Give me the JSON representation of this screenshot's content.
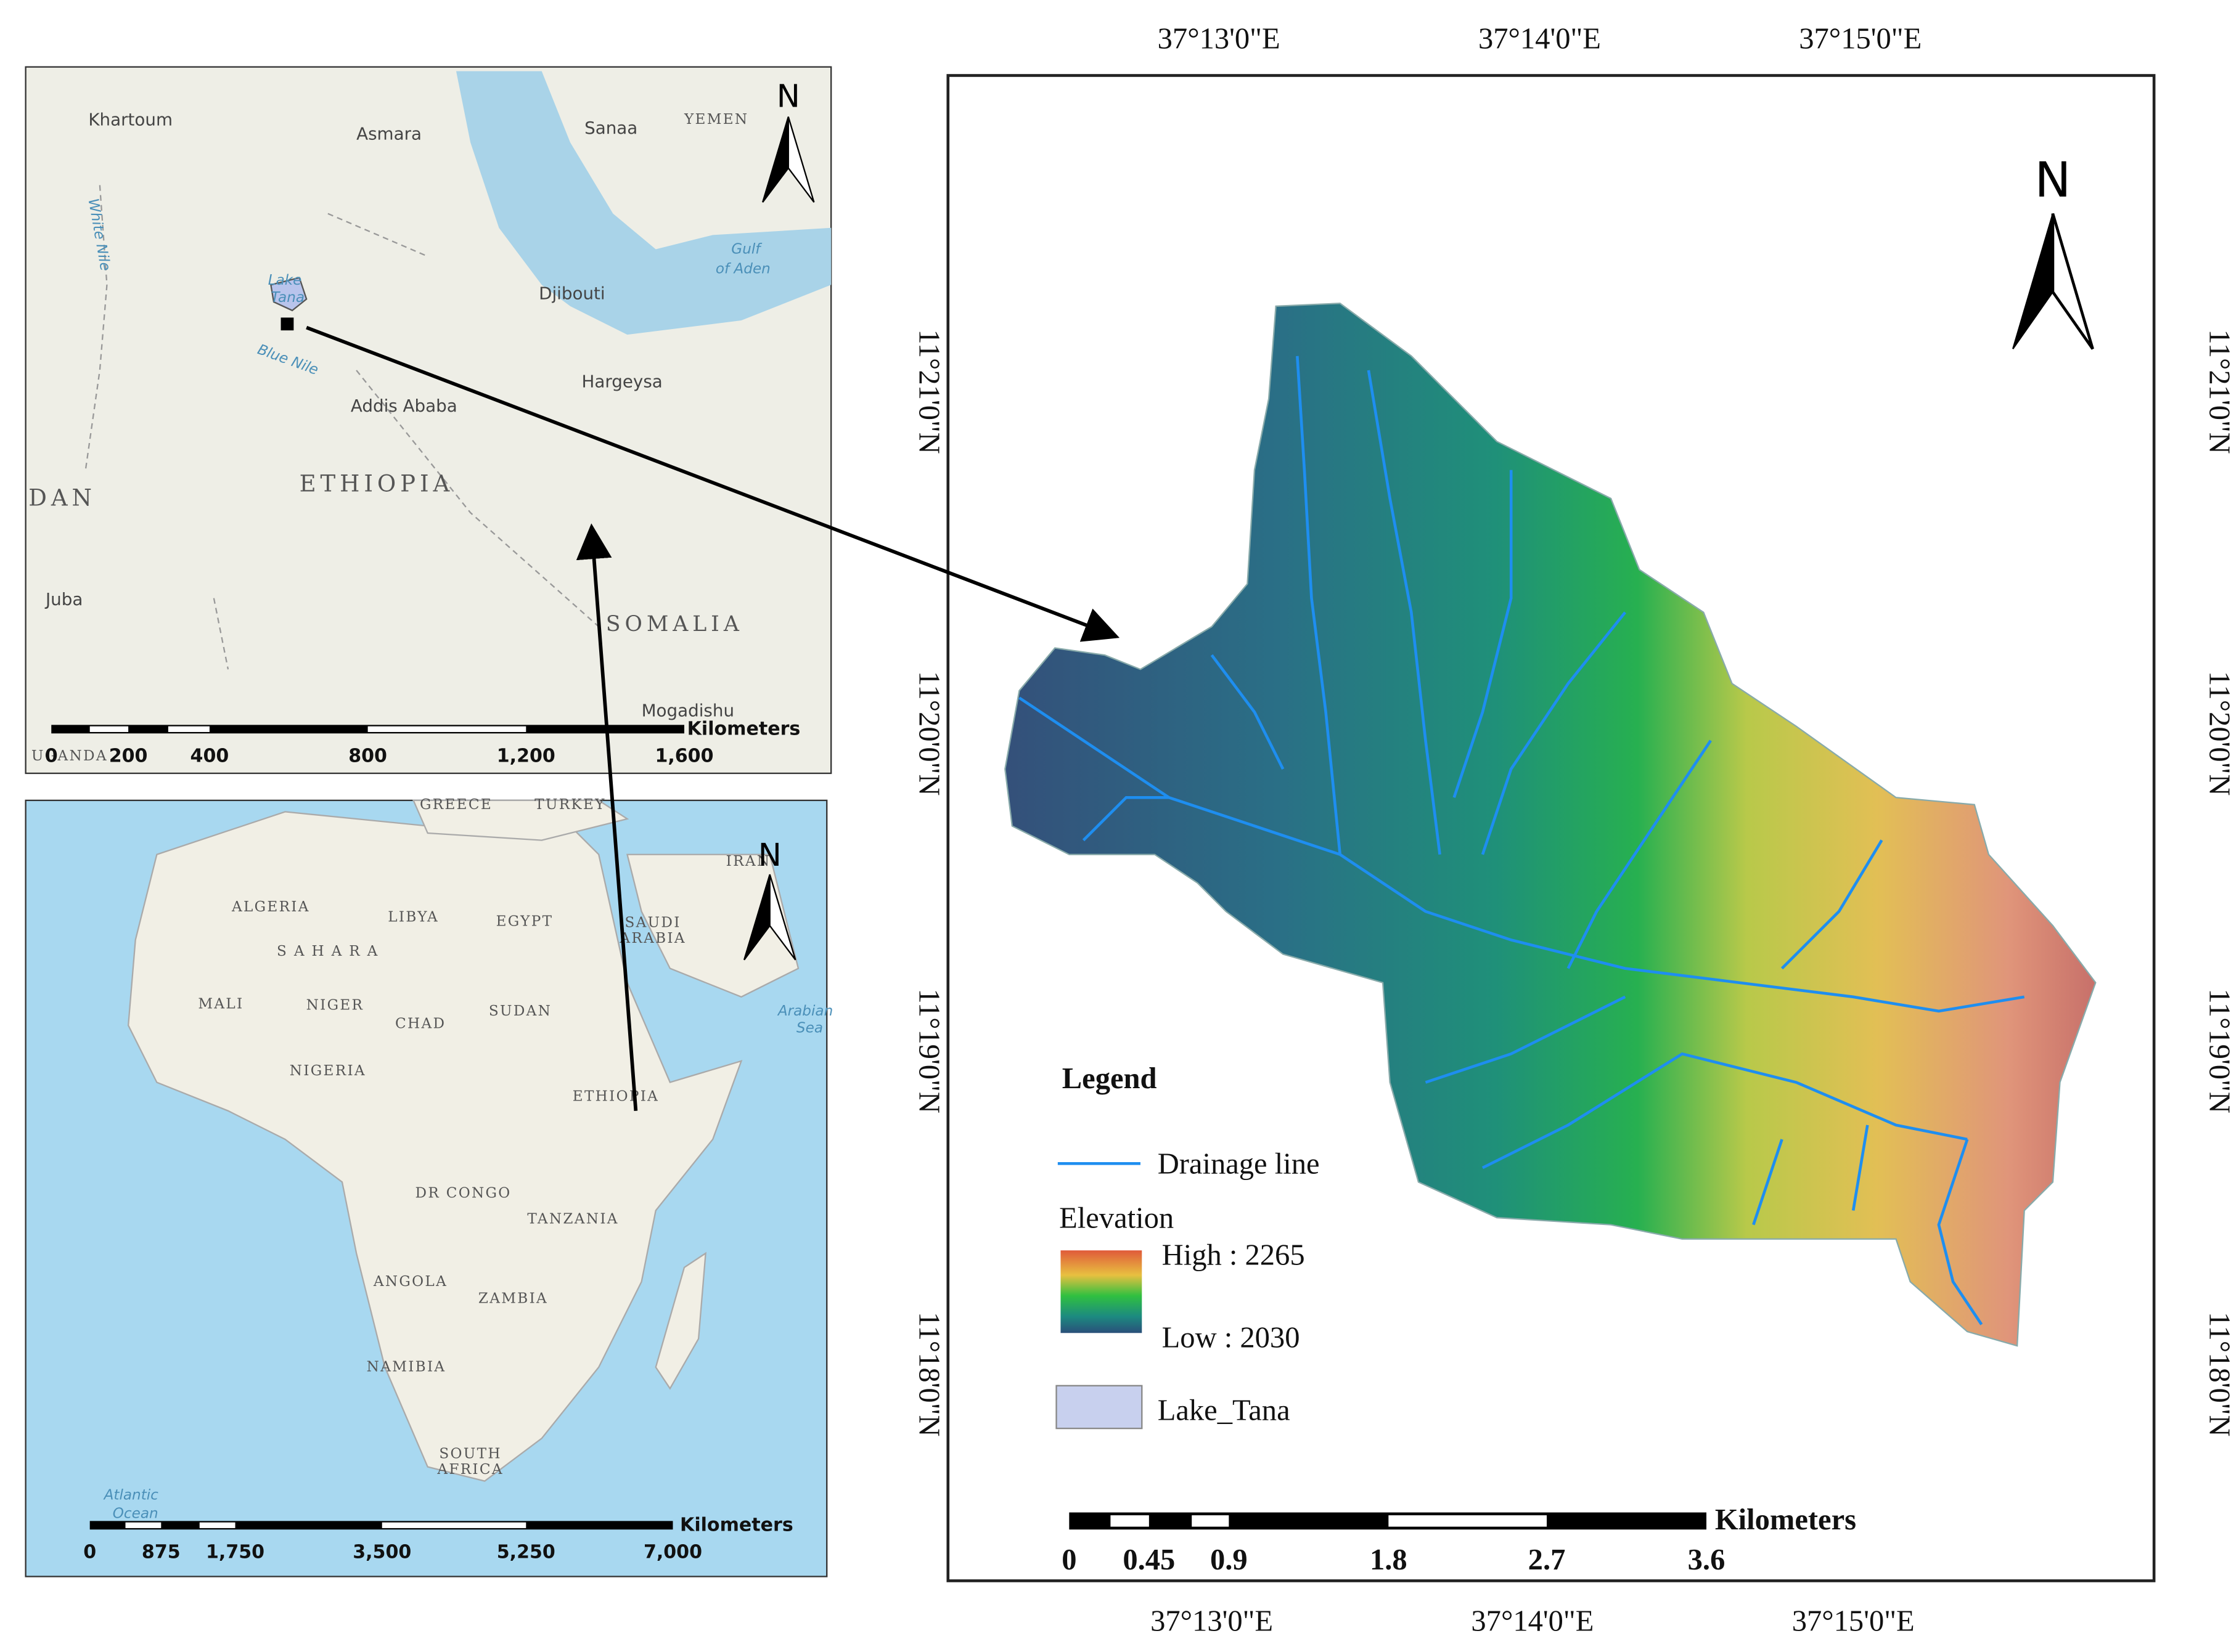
{
  "regional_inset": {
    "north": "N",
    "places": [
      "Khartoum",
      "Asmara",
      "Sanaa",
      "YEMEN",
      "Gulf",
      "of Aden",
      "Lake",
      "Tana",
      "Djibouti",
      "Blue Nile",
      "White Nile",
      "Hargeysa",
      "Addis Ababa",
      "ETHIOPIA",
      "DAN",
      "Juba",
      "SOMALIA",
      "Mogadishu",
      "UGANDA"
    ],
    "scale_bar": {
      "unit": "Kilometers",
      "ticks": [
        "0",
        "200",
        "400",
        "800",
        "1,200",
        "1,600"
      ]
    }
  },
  "africa_inset": {
    "north": "N",
    "places": [
      "GREECE",
      "TURKEY",
      "IRAN",
      "ALGERIA",
      "LIBYA",
      "EGYPT",
      "SAUDI",
      "ARABIA",
      "S A H A R A",
      "MALI",
      "NIGER",
      "SUDAN",
      "CHAD",
      "NIGERIA",
      "ETHIOPIA",
      "DR CONGO",
      "TANZANIA",
      "ANGOLA",
      "ZAMBIA",
      "NAMIBIA",
      "SOUTH",
      "AFRICA",
      "Atlantic",
      "Ocean",
      "Arabian",
      "Sea"
    ],
    "scale_bar": {
      "unit": "Kilometers",
      "ticks": [
        "0",
        "875",
        "1,750",
        "3,500",
        "5,250",
        "7,000"
      ]
    }
  },
  "main_map": {
    "north": "N",
    "longitudes": [
      "37°13'0\"E",
      "37°14'0\"E",
      "37°15'0\"E"
    ],
    "latitudes": [
      "11°21'0\"N",
      "11°20'0\"N",
      "11°19'0\"N",
      "11°18'0\"N"
    ],
    "legend": {
      "title": "Legend",
      "drainage": "Drainage line",
      "elevation": "Elevation",
      "high": "High : 2265",
      "low": "Low : 2030",
      "lake": "Lake_Tana"
    },
    "scale_bar": {
      "unit": "Kilometers",
      "ticks": [
        "0",
        "0.45",
        "0.9",
        "1.8",
        "2.7",
        "3.6"
      ]
    }
  }
}
